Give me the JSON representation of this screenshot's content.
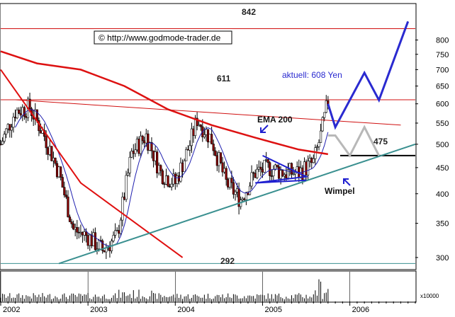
{
  "watermark": "© http://www.godmode-trader.de",
  "annotations": {
    "current_price": "aktuell: 608 Yen",
    "ema_label": "EMA 200",
    "pattern_label": "Wimpel",
    "level_high": "842",
    "level_mid": "611",
    "level_low": "292",
    "level_support": "475"
  },
  "volume_unit": "x10000",
  "colors": {
    "candle_body": "#8b0000",
    "ema200": "#dd1111",
    "ma_short": "#2020b0",
    "trendline_support": "#3a9090",
    "downtrend": "#e01010",
    "horizontal_levels": "#d01010",
    "projection": "#2a2ad0",
    "alt_projection": "#b8b8b8",
    "pattern": "#2020d0"
  },
  "chart_data": {
    "type": "candlestick",
    "title": "",
    "xlabel": "",
    "ylabel": "",
    "scale": "log",
    "ylim": [
      285,
      940
    ],
    "y_ticks": [
      300,
      350,
      400,
      450,
      500,
      550,
      600,
      650,
      700,
      750,
      800
    ],
    "x_ticks": [
      "2002",
      "2003",
      "2004",
      "2005",
      "2006"
    ],
    "xlim": [
      "2002-01",
      "2006-10"
    ],
    "horizontal_levels": [
      842,
      611,
      475,
      292
    ],
    "series": [
      {
        "type": "close_path",
        "points": [
          [
            "2002-01",
            500
          ],
          [
            "2002-03",
            580
          ],
          [
            "2002-05",
            590
          ],
          [
            "2002-07",
            520
          ],
          [
            "2002-09",
            440
          ],
          [
            "2002-11",
            340
          ],
          [
            "2003-01",
            330
          ],
          [
            "2003-03",
            310
          ],
          [
            "2003-05",
            330
          ],
          [
            "2003-07",
            480
          ],
          [
            "2003-09",
            520
          ],
          [
            "2003-11",
            440
          ],
          [
            "2004-01",
            420
          ],
          [
            "2004-03",
            500
          ],
          [
            "2004-04",
            560
          ],
          [
            "2004-06",
            510
          ],
          [
            "2004-08",
            420
          ],
          [
            "2004-10",
            390
          ],
          [
            "2004-12",
            440
          ],
          [
            "2005-02",
            450
          ],
          [
            "2005-04",
            440
          ],
          [
            "2005-06",
            440
          ],
          [
            "2005-08",
            460
          ],
          [
            "2005-09",
            520
          ],
          [
            "2005-10",
            608
          ]
        ]
      },
      {
        "name": "EMA 200",
        "points": [
          [
            "2002-01",
            760
          ],
          [
            "2002-06",
            720
          ],
          [
            "2002-12",
            700
          ],
          [
            "2003-06",
            650
          ],
          [
            "2003-12",
            585
          ],
          [
            "2004-06",
            545
          ],
          [
            "2004-12",
            515
          ],
          [
            "2005-06",
            488
          ],
          [
            "2005-10",
            478
          ]
        ]
      },
      {
        "type": "projection_primary",
        "points": [
          [
            "2005-10",
            600
          ],
          [
            "2005-11",
            540
          ],
          [
            "2006-03",
            690
          ],
          [
            "2006-05",
            610
          ],
          [
            "2006-09",
            870
          ]
        ]
      },
      {
        "type": "projection_alternative",
        "points": [
          [
            "2005-10",
            520
          ],
          [
            "2005-11",
            520
          ],
          [
            "2006-01",
            475
          ],
          [
            "2006-03",
            540
          ],
          [
            "2006-05",
            475
          ]
        ]
      }
    ]
  }
}
